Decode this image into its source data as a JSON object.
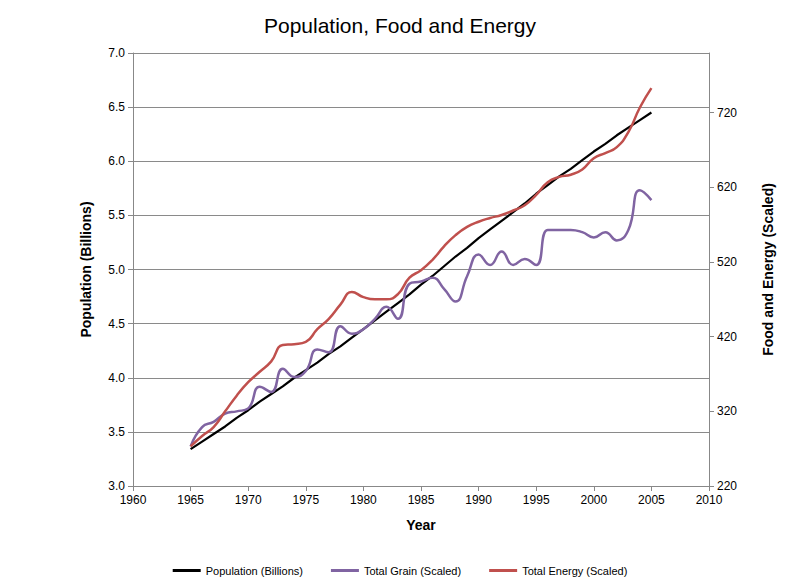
{
  "chart_data": {
    "type": "line",
    "title": "Population, Food and Energy",
    "x_label": "Year",
    "y_label": "Population (Billions)",
    "y2_label": "Food and Energy (Scaled)",
    "x": [
      1965,
      1966,
      1967,
      1968,
      1969,
      1970,
      1971,
      1972,
      1973,
      1974,
      1975,
      1976,
      1977,
      1978,
      1979,
      1980,
      1981,
      1982,
      1983,
      1984,
      1985,
      1986,
      1987,
      1988,
      1989,
      1990,
      1991,
      1992,
      1993,
      1994,
      1995,
      1996,
      1997,
      1998,
      1999,
      2000,
      2001,
      2002,
      2003,
      2004,
      2005
    ],
    "xlim": [
      1960,
      2010
    ],
    "xticks": [
      1960,
      1965,
      1970,
      1975,
      1980,
      1985,
      1990,
      1995,
      2000,
      2005,
      2010
    ],
    "ylim": [
      3,
      7
    ],
    "yticks": [
      {
        "value": 3,
        "label": "3.0"
      },
      {
        "value": 3.5,
        "label": "3.5"
      },
      {
        "value": 4,
        "label": "4.0"
      },
      {
        "value": 4.5,
        "label": "4.5"
      },
      {
        "value": 5,
        "label": "5.0"
      },
      {
        "value": 5.5,
        "label": "5.5"
      },
      {
        "value": 6,
        "label": "6.0"
      },
      {
        "value": 6.5,
        "label": "6.5"
      },
      {
        "value": 7,
        "label": "7.0"
      }
    ],
    "y2lim": [
      220,
      800
    ],
    "y2ticks": [
      220,
      320,
      420,
      520,
      620,
      720
    ],
    "grid": true,
    "legend": "bottom",
    "series": [
      {
        "name": "Population (Billions)",
        "color": "#000000",
        "line_style": "solid",
        "values": [
          3.34,
          3.41,
          3.48,
          3.55,
          3.63,
          3.7,
          3.78,
          3.85,
          3.92,
          4.0,
          4.07,
          4.14,
          4.22,
          4.29,
          4.37,
          4.45,
          4.53,
          4.61,
          4.69,
          4.77,
          4.86,
          4.94,
          5.03,
          5.12,
          5.2,
          5.29,
          5.37,
          5.45,
          5.53,
          5.61,
          5.7,
          5.78,
          5.86,
          5.93,
          6.01,
          6.09,
          6.16,
          6.24,
          6.31,
          6.38,
          6.45
        ]
      },
      {
        "name": "Total Grain (Scaled)",
        "color": "#8064a2",
        "line_style": "smooth",
        "axis": "y2",
        "values": [
          273,
          299,
          306,
          317,
          320,
          324,
          353,
          346,
          377,
          366,
          374,
          403,
          399,
          434,
          424,
          430,
          444,
          460,
          444,
          491,
          494,
          499,
          484,
          467,
          501,
          530,
          516,
          534,
          516,
          524,
          516,
          563,
          563,
          563,
          560,
          553,
          560,
          549,
          563,
          616,
          603
        ]
      },
      {
        "name": "Total Energy (Scaled)",
        "color": "#c0504d",
        "line_style": "smooth",
        "axis": "y2",
        "values": [
          273,
          287,
          299,
          320,
          341,
          359,
          373,
          387,
          409,
          410,
          413,
          430,
          444,
          463,
          480,
          473,
          470,
          470,
          477,
          499,
          509,
          523,
          541,
          556,
          567,
          574,
          579,
          583,
          589,
          596,
          610,
          627,
          634,
          637,
          644,
          659,
          666,
          674,
          694,
          727,
          753
        ]
      }
    ]
  }
}
